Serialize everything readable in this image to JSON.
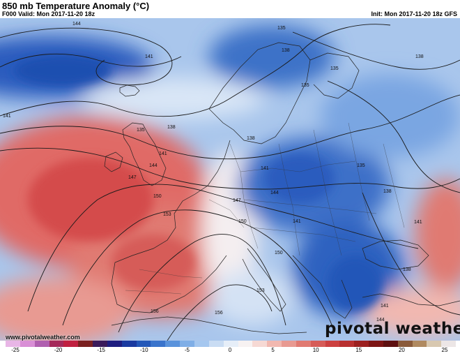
{
  "header": {
    "title": "850 mb Temperature Anomaly (°C)",
    "valid": "F000 Valid: Mon 2017-11-20 18z",
    "init": "Init: Mon 2017-11-20 18z GFS"
  },
  "map": {
    "variable": "850 mb temperature anomaly",
    "contour_labels": [
      "144",
      "141",
      "138",
      "135",
      "135",
      "138",
      "141",
      "138",
      "135",
      "141",
      "144",
      "147",
      "141",
      "144",
      "150",
      "153",
      "147",
      "150",
      "141",
      "150",
      "153",
      "156",
      "156",
      "135",
      "138",
      "141",
      "144",
      "138",
      "138",
      "141",
      "135"
    ],
    "colors": {
      "cold_strong": "#2357b8",
      "cold_mid": "#6b9be0",
      "cold_light": "#c9dcf3",
      "neutral": "#f2eef2",
      "warm_light": "#f1b8b0",
      "warm_mid": "#e07a72",
      "warm_strong": "#d04a4a",
      "land_border": "#222222"
    }
  },
  "colorbar": {
    "ticks": [
      "-25",
      "-20",
      "-15",
      "-10",
      "-5",
      "0",
      "5",
      "10",
      "15",
      "20",
      "25"
    ],
    "colors": [
      "#e8b6e6",
      "#d98fd6",
      "#b060b0",
      "#a52a5a",
      "#c02040",
      "#7a2020",
      "#3a1a5a",
      "#1e1e80",
      "#1a3aa0",
      "#2357b8",
      "#3a74cc",
      "#5a93dc",
      "#7faee6",
      "#a5c7ef",
      "#c9dcf3",
      "#e6eef8",
      "#f7f2f2",
      "#f6d9d4",
      "#f1b8b0",
      "#e89a92",
      "#e07a72",
      "#d65c58",
      "#cc4040",
      "#b83030",
      "#9c2020",
      "#7d1515",
      "#5e1010",
      "#8a5a3a",
      "#b08a60",
      "#d8c8b0",
      "#ece6e6"
    ]
  },
  "footer": {
    "website": "www.pivotalweather.com",
    "brand": "pivotal weather"
  }
}
